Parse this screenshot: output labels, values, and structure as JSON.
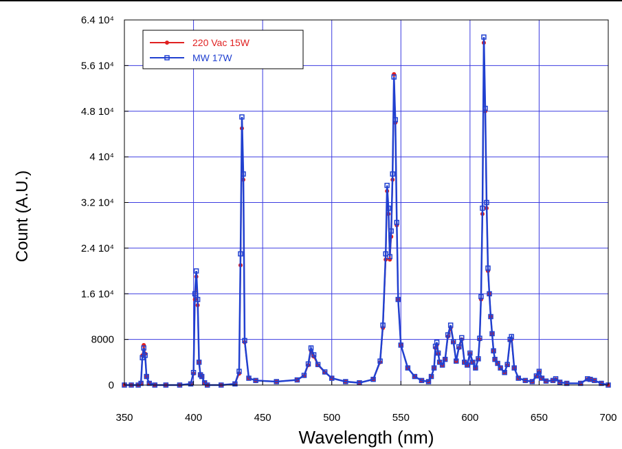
{
  "chart_data": {
    "type": "line",
    "xlabel": "Wavelength (nm)",
    "ylabel": "Count (A.U.)",
    "xlim": [
      350,
      700
    ],
    "ylim": [
      0,
      64000
    ],
    "grid": true,
    "legend_position": "top-left",
    "x_ticks": [
      350,
      400,
      450,
      500,
      550,
      600,
      650,
      700
    ],
    "x_tick_labels": [
      "350",
      "400",
      "450",
      "500",
      "550",
      "600",
      "650",
      "700"
    ],
    "y_ticks": [
      0,
      8000,
      16000,
      24000,
      32000,
      40000,
      48000,
      56000,
      64000
    ],
    "y_tick_labels": [
      "0",
      "8000",
      "1.6 10⁴",
      "2.4 10⁴",
      "3.2 10⁴",
      "4 10⁴",
      "4.8 10⁴",
      "5.6 10⁴",
      "6.4 10⁴"
    ],
    "series": [
      {
        "name": "220 Vac 15W",
        "color": "#e02020",
        "marker": "dot",
        "x": [
          350,
          355,
          360,
          362,
          363,
          364,
          365,
          366,
          368,
          372,
          380,
          390,
          398,
          400,
          401,
          402,
          403,
          404,
          405,
          406,
          408,
          410,
          420,
          430,
          433,
          434,
          435,
          436,
          437,
          440,
          445,
          460,
          475,
          480,
          483,
          485,
          487,
          490,
          495,
          500,
          510,
          520,
          530,
          535,
          537,
          539,
          540,
          541,
          542,
          543,
          544,
          545,
          546,
          547,
          548,
          550,
          555,
          560,
          565,
          570,
          572,
          574,
          575,
          576,
          577,
          578,
          580,
          582,
          584,
          586,
          588,
          590,
          592,
          594,
          596,
          598,
          600,
          602,
          604,
          606,
          607,
          608,
          609,
          610,
          611,
          612,
          613,
          614,
          615,
          616,
          617,
          618,
          620,
          622,
          625,
          627,
          629,
          630,
          632,
          635,
          640,
          645,
          648,
          650,
          652,
          655,
          660,
          662,
          665,
          670,
          680,
          685,
          687,
          690,
          695,
          700
        ],
        "y": [
          0,
          0,
          0,
          300,
          5200,
          7000,
          5500,
          1500,
          300,
          0,
          0,
          0,
          200,
          2000,
          15000,
          19000,
          14000,
          4000,
          1800,
          1500,
          400,
          0,
          0,
          200,
          2000,
          21000,
          45000,
          36000,
          7500,
          1200,
          800,
          600,
          900,
          1600,
          3500,
          6000,
          5000,
          3500,
          2200,
          1200,
          600,
          400,
          1000,
          4000,
          10000,
          22000,
          34000,
          30000,
          22000,
          26000,
          36000,
          54500,
          46000,
          28000,
          15000,
          7000,
          3000,
          1500,
          800,
          600,
          1500,
          3000,
          6500,
          7000,
          5500,
          4000,
          3500,
          4500,
          8500,
          10000,
          7500,
          4200,
          6500,
          8000,
          4000,
          3500,
          5500,
          4000,
          3000,
          4500,
          8000,
          15000,
          30000,
          60000,
          48000,
          31000,
          20000,
          16000,
          12000,
          9000,
          6000,
          4500,
          3800,
          3000,
          2200,
          3500,
          7800,
          8000,
          3000,
          1200,
          800,
          600,
          1500,
          2300,
          1200,
          700,
          800,
          1000,
          500,
          300,
          300,
          1000,
          1000,
          800,
          300,
          0
        ]
      },
      {
        "name": "MW 17W",
        "color": "#2040d0",
        "marker": "square",
        "x": [
          350,
          355,
          360,
          362,
          363,
          364,
          365,
          366,
          368,
          372,
          380,
          390,
          398,
          400,
          401,
          402,
          403,
          404,
          405,
          406,
          408,
          410,
          420,
          430,
          433,
          434,
          435,
          436,
          437,
          440,
          445,
          460,
          475,
          480,
          483,
          485,
          487,
          490,
          495,
          500,
          510,
          520,
          530,
          535,
          537,
          539,
          540,
          541,
          542,
          543,
          544,
          545,
          546,
          547,
          548,
          550,
          555,
          560,
          565,
          570,
          572,
          574,
          575,
          576,
          577,
          578,
          580,
          582,
          584,
          586,
          588,
          590,
          592,
          594,
          596,
          598,
          600,
          602,
          604,
          606,
          607,
          608,
          609,
          610,
          611,
          612,
          613,
          614,
          615,
          616,
          617,
          618,
          620,
          622,
          625,
          627,
          629,
          630,
          632,
          635,
          640,
          645,
          648,
          650,
          652,
          655,
          660,
          662,
          665,
          670,
          680,
          685,
          687,
          690,
          695,
          700
        ],
        "y": [
          0,
          0,
          0,
          300,
          4800,
          6500,
          5200,
          1500,
          300,
          0,
          0,
          0,
          200,
          2200,
          16000,
          20000,
          15000,
          4000,
          1800,
          1500,
          400,
          0,
          0,
          200,
          2400,
          23000,
          47000,
          37000,
          7800,
          1200,
          800,
          600,
          900,
          1700,
          3700,
          6500,
          5300,
          3600,
          2300,
          1200,
          600,
          400,
          1000,
          4200,
          10500,
          23000,
          35000,
          31000,
          22500,
          27000,
          37000,
          54000,
          46500,
          28500,
          15000,
          7000,
          3000,
          1500,
          800,
          600,
          1500,
          3000,
          6800,
          7500,
          5600,
          4000,
          3500,
          4500,
          8800,
          10500,
          7600,
          4200,
          6700,
          8300,
          4000,
          3500,
          5600,
          4000,
          3000,
          4600,
          8200,
          15500,
          31000,
          61000,
          48500,
          32000,
          20500,
          16000,
          12000,
          9000,
          6000,
          4500,
          3800,
          3000,
          2200,
          3600,
          8000,
          8500,
          3000,
          1200,
          800,
          600,
          1600,
          2400,
          1200,
          700,
          800,
          1100,
          500,
          300,
          300,
          1100,
          1000,
          800,
          300,
          0
        ]
      }
    ]
  }
}
